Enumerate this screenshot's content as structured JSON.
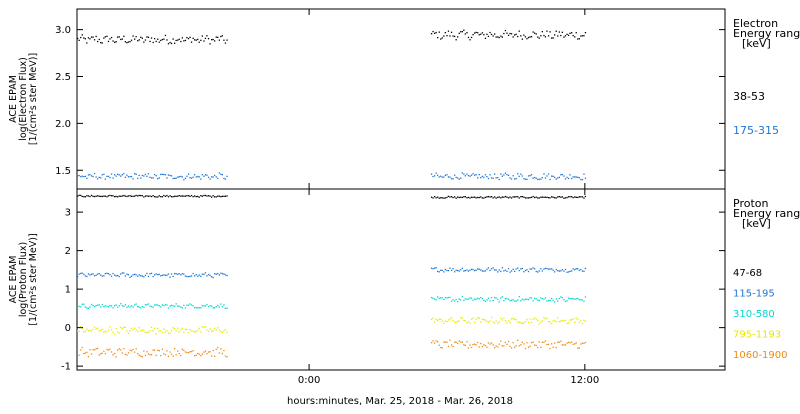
{
  "xlabel": "hours:minutes, Mar. 25, 2018 - Mar. 26, 2018",
  "chart_data": [
    {
      "type": "scatter",
      "ylabel_lines": [
        "ACE EPAM",
        "log(Electron Flux)",
        "[1/(cm²s ster MeV)]"
      ],
      "ylim": [
        1.3,
        3.22
      ],
      "yticks": [
        {
          "v": 1.5,
          "label": "1.5"
        },
        {
          "v": 2.0,
          "label": "2.0"
        },
        {
          "v": 2.5,
          "label": "2.5"
        },
        {
          "v": 3.0,
          "label": "3.0"
        }
      ],
      "legend_title_lines": [
        "Electron",
        "Energy ranges",
        "[keV]"
      ],
      "series": [
        {
          "name": "38-53",
          "color": "#000000",
          "segments": [
            {
              "x": [
                -10.1,
                -3.6
              ],
              "mean": 2.9,
              "amp": 0.04
            },
            {
              "x": [
                5.3,
                12.0
              ],
              "mean": 2.95,
              "amp": 0.04
            }
          ]
        },
        {
          "name": "175-315",
          "color": "#1f77d4",
          "segments": [
            {
              "x": [
                -10.1,
                -3.6
              ],
              "mean": 1.44,
              "amp": 0.03
            },
            {
              "x": [
                5.3,
                12.0
              ],
              "mean": 1.44,
              "amp": 0.03
            }
          ]
        }
      ]
    },
    {
      "type": "scatter",
      "ylabel_lines": [
        "ACE EPAM",
        "log(Proton Flux)",
        "[1/(cm²s ster MeV)]"
      ],
      "ylim": [
        -1.1,
        3.6
      ],
      "yticks": [
        {
          "v": -1,
          "label": "-1"
        },
        {
          "v": 0,
          "label": "0"
        },
        {
          "v": 1,
          "label": "1"
        },
        {
          "v": 2,
          "label": "2"
        },
        {
          "v": 3,
          "label": "3"
        }
      ],
      "legend_title_lines": [
        "Proton",
        "Energy ranges",
        "[keV]"
      ],
      "series": [
        {
          "name": "47-68",
          "color": "#000000",
          "segments": [
            {
              "x": [
                -10.1,
                -3.6
              ],
              "mean": 3.43,
              "amp": 0.02
            },
            {
              "x": [
                5.3,
                12.0
              ],
              "mean": 3.4,
              "amp": 0.02
            }
          ]
        },
        {
          "name": "115-195",
          "color": "#1f77d4",
          "segments": [
            {
              "x": [
                -10.1,
                -3.6
              ],
              "mean": 1.38,
              "amp": 0.05
            },
            {
              "x": [
                5.3,
                12.0
              ],
              "mean": 1.52,
              "amp": 0.05
            }
          ]
        },
        {
          "name": "310-580",
          "color": "#00d8d0",
          "segments": [
            {
              "x": [
                -10.1,
                -3.6
              ],
              "mean": 0.58,
              "amp": 0.05
            },
            {
              "x": [
                5.3,
                12.0
              ],
              "mean": 0.75,
              "amp": 0.06
            }
          ]
        },
        {
          "name": "795-1193",
          "color": "#e8e800",
          "segments": [
            {
              "x": [
                -10.1,
                -3.6
              ],
              "mean": -0.05,
              "amp": 0.08
            },
            {
              "x": [
                5.3,
                12.0
              ],
              "mean": 0.2,
              "amp": 0.07
            }
          ]
        },
        {
          "name": "1060-1900",
          "color": "#f08a10",
          "segments": [
            {
              "x": [
                -10.1,
                -3.6
              ],
              "mean": -0.62,
              "amp": 0.1
            },
            {
              "x": [
                5.3,
                12.0
              ],
              "mean": -0.42,
              "amp": 0.09
            }
          ]
        }
      ]
    }
  ],
  "x_axis": {
    "range_hours": [
      -10.1,
      18.1
    ],
    "ticks": [
      {
        "v": 0,
        "label": "0:00"
      },
      {
        "v": 12,
        "label": "12:00"
      }
    ]
  }
}
